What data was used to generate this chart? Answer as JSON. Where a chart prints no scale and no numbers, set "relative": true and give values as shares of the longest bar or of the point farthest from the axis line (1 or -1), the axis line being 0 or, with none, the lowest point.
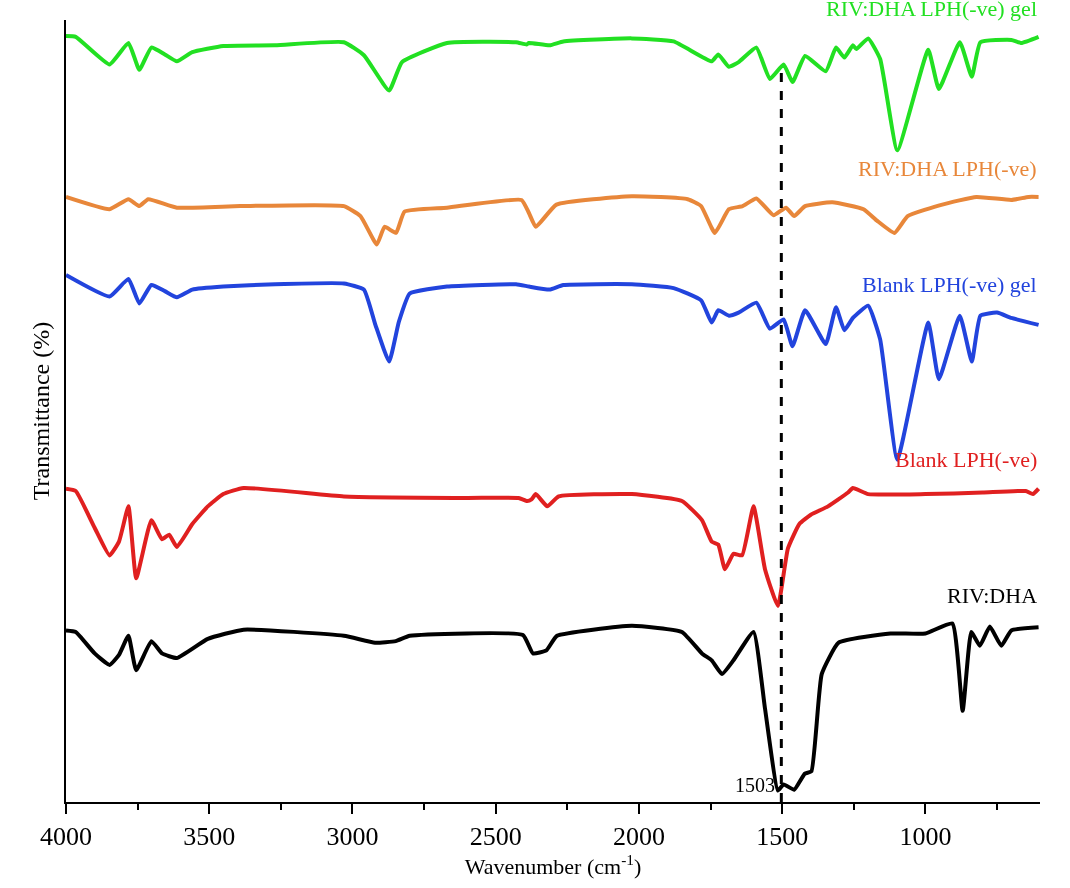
{
  "chart_data": {
    "type": "line",
    "relative": true,
    "xlabel": "Wavenumber (cm$^{-1}$)",
    "ylabel": "Transmittance (%)",
    "xlim": [
      4000,
      600
    ],
    "xticks": [
      4000,
      {
        "value": 3750,
        "label": null
      },
      3500,
      {
        "value": 3250,
        "label": null
      },
      3000,
      {
        "value": 2750,
        "label": null
      },
      2500,
      {
        "value": 2250,
        "label": null
      },
      2000,
      {
        "value": 1750,
        "label": null
      },
      1500,
      {
        "value": 1250,
        "label": null
      },
      1000,
      {
        "value": 750,
        "label": null
      }
    ],
    "tick_labels": "x",
    "legend": false,
    "marker": "none",
    "line_style": "solid",
    "ref_lines": [
      {
        "axis": "x",
        "value": 1503,
        "label": "1503",
        "color": "#000000",
        "line_style": "dashed"
      }
    ],
    "series": [
      {
        "name": "RIV:DHA LPH(-ve) gel",
        "color": "#22e022",
        "x": [
          4000,
          3966,
          3848,
          3782,
          3744,
          3702,
          3655,
          3613,
          3559,
          3451,
          3270,
          3030,
          2960,
          2872,
          2827,
          2670,
          2429,
          2392,
          2384,
          2312,
          2264,
          2025,
          1879,
          1746,
          1723,
          1686,
          1652,
          1590,
          1543,
          1495,
          1464,
          1420,
          1348,
          1312,
          1283,
          1253,
          1241,
          1200,
          1158,
          1098,
          990,
          953,
          880,
          838,
          808,
          700,
          665,
          605
        ],
        "values": [
          1.0,
          0.999,
          0.963,
          0.991,
          0.956,
          0.985,
          0.976,
          0.967,
          0.979,
          0.987,
          0.988,
          0.992,
          0.975,
          0.929,
          0.966,
          0.991,
          0.992,
          0.989,
          0.991,
          0.988,
          0.993,
          0.997,
          0.993,
          0.967,
          0.976,
          0.96,
          0.966,
          0.985,
          0.944,
          0.963,
          0.94,
          0.974,
          0.954,
          0.985,
          0.972,
          0.988,
          0.983,
          0.997,
          0.97,
          0.851,
          0.982,
          0.931,
          0.992,
          0.947,
          0.992,
          0.995,
          0.991,
          0.999
        ]
      },
      {
        "name": "RIV:DHA LPH(-ve)",
        "color": "#e8873a",
        "x": [
          4000,
          3848,
          3782,
          3744,
          3713,
          3613,
          3392,
          3030,
          2972,
          2915,
          2888,
          2848,
          2818,
          2670,
          2410,
          2384,
          2360,
          2288,
          2025,
          1830,
          1783,
          1735,
          1686,
          1638,
          1590,
          1530,
          1487,
          1458,
          1420,
          1325,
          1216,
          1169,
          1108,
          1062,
          941,
          822,
          700,
          640,
          605
        ],
        "values": [
          0.79,
          0.774,
          0.787,
          0.778,
          0.787,
          0.776,
          0.778,
          0.778,
          0.765,
          0.728,
          0.751,
          0.743,
          0.771,
          0.776,
          0.786,
          0.769,
          0.751,
          0.78,
          0.791,
          0.787,
          0.778,
          0.743,
          0.774,
          0.778,
          0.788,
          0.766,
          0.776,
          0.765,
          0.778,
          0.783,
          0.774,
          0.759,
          0.743,
          0.765,
          0.78,
          0.79,
          0.786,
          0.79,
          0.79
        ]
      },
      {
        "name": "Blank LPH(-ve) gel",
        "color": "#2244dd",
        "x": [
          4000,
          3848,
          3782,
          3744,
          3702,
          3655,
          3613,
          3559,
          3451,
          3270,
          3030,
          2960,
          2920,
          2872,
          2838,
          2800,
          2670,
          2429,
          2384,
          2312,
          2264,
          2025,
          1879,
          1783,
          1746,
          1723,
          1686,
          1652,
          1590,
          1543,
          1495,
          1464,
          1420,
          1348,
          1312,
          1283,
          1253,
          1200,
          1158,
          1098,
          990,
          953,
          880,
          838,
          808,
          750,
          700,
          605
        ],
        "values": [
          0.688,
          0.66,
          0.683,
          0.651,
          0.675,
          0.667,
          0.659,
          0.669,
          0.673,
          0.676,
          0.677,
          0.669,
          0.623,
          0.575,
          0.627,
          0.664,
          0.673,
          0.676,
          0.673,
          0.669,
          0.675,
          0.676,
          0.671,
          0.655,
          0.626,
          0.642,
          0.635,
          0.639,
          0.652,
          0.618,
          0.63,
          0.595,
          0.642,
          0.598,
          0.646,
          0.616,
          0.632,
          0.648,
          0.604,
          0.447,
          0.626,
          0.552,
          0.635,
          0.575,
          0.635,
          0.639,
          0.632,
          0.623
        ]
      },
      {
        "name": "Blank LPH(-ve)",
        "color": "#e02020",
        "x": [
          4000,
          3966,
          3900,
          3848,
          3815,
          3782,
          3755,
          3702,
          3665,
          3640,
          3613,
          3559,
          3505,
          3451,
          3380,
          3030,
          2600,
          2420,
          2390,
          2375,
          2360,
          2320,
          2280,
          2025,
          1850,
          1780,
          1746,
          1723,
          1700,
          1670,
          1640,
          1600,
          1560,
          1515,
          1480,
          1440,
          1400,
          1340,
          1270,
          1253,
          1200,
          1000,
          800,
          650,
          625,
          605
        ],
        "values": [
          0.409,
          0.406,
          0.358,
          0.322,
          0.34,
          0.386,
          0.292,
          0.368,
          0.343,
          0.349,
          0.333,
          0.363,
          0.386,
          0.402,
          0.41,
          0.399,
          0.397,
          0.397,
          0.393,
          0.395,
          0.402,
          0.386,
          0.399,
          0.402,
          0.393,
          0.368,
          0.34,
          0.336,
          0.304,
          0.324,
          0.322,
          0.386,
          0.304,
          0.256,
          0.331,
          0.363,
          0.375,
          0.386,
          0.404,
          0.41,
          0.402,
          0.402,
          0.404,
          0.406,
          0.402,
          0.409
        ]
      },
      {
        "name": "RIV:DHA",
        "color": "#000000",
        "x": [
          4000,
          3966,
          3900,
          3848,
          3815,
          3782,
          3755,
          3702,
          3665,
          3613,
          3505,
          3380,
          3030,
          2921,
          2849,
          2800,
          2405,
          2370,
          2323,
          2286,
          2025,
          1850,
          1780,
          1746,
          1710,
          1670,
          1600,
          1560,
          1515,
          1495,
          1458,
          1421,
          1398,
          1362,
          1303,
          1122,
          1000,
          906,
          870,
          840,
          810,
          775,
          735,
          700,
          605
        ],
        "values": [
          0.224,
          0.222,
          0.194,
          0.179,
          0.192,
          0.217,
          0.172,
          0.21,
          0.194,
          0.188,
          0.213,
          0.225,
          0.217,
          0.208,
          0.21,
          0.217,
          0.218,
          0.194,
          0.198,
          0.217,
          0.23,
          0.222,
          0.194,
          0.185,
          0.167,
          0.185,
          0.222,
          0.122,
          0.015,
          0.023,
          0.016,
          0.037,
          0.04,
          0.167,
          0.208,
          0.22,
          0.22,
          0.233,
          0.119,
          0.222,
          0.204,
          0.229,
          0.204,
          0.224,
          0.228
        ]
      }
    ]
  }
}
